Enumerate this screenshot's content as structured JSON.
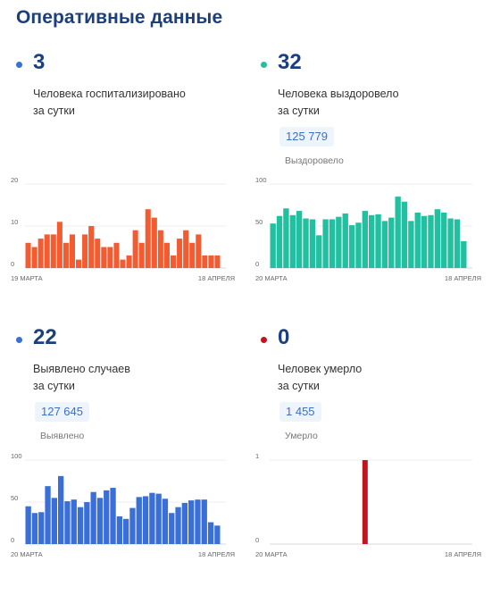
{
  "page_title": "Оперативные данные",
  "panels": [
    {
      "id": "hospitalized",
      "value": "3",
      "description": "Человека госпитализировано\nза сутки",
      "dot_color": "#3a6fd8",
      "total": null,
      "total_label": null
    },
    {
      "id": "recovered",
      "value": "32",
      "description": "Человека выздоровело\nза сутки",
      "dot_color": "#22c0a0",
      "total": "125 779",
      "total_label": "Выздоровело"
    },
    {
      "id": "detected",
      "value": "22",
      "description": "Выявлено случаев\nза сутки",
      "dot_color": "#3a6fd8",
      "total": "127 645",
      "total_label": "Выявлено"
    },
    {
      "id": "died",
      "value": "0",
      "description": "Человек умерло\nза сутки",
      "dot_color": "#c0151f",
      "total": "1 455",
      "total_label": "Умерло"
    }
  ],
  "chart_data": [
    {
      "type": "bar",
      "color": "#f25c30",
      "x_start_label": "19 МАРТА",
      "x_end_label": "18 АПРЕЛЯ",
      "yticks": [
        0,
        10,
        20
      ],
      "ylim": [
        0,
        20
      ],
      "values": [
        6,
        5,
        7,
        8,
        8,
        11,
        6,
        8,
        2,
        8,
        10,
        7,
        5,
        5,
        6,
        2,
        3,
        9,
        6,
        14,
        12,
        9,
        6,
        3,
        7,
        9,
        6,
        8,
        3,
        3,
        3
      ]
    },
    {
      "type": "bar",
      "color": "#22c0a0",
      "x_start_label": "20 МАРТА",
      "x_end_label": "18 АПРЕЛЯ",
      "yticks": [
        0,
        50,
        100
      ],
      "ylim": [
        0,
        100
      ],
      "values": [
        53,
        62,
        71,
        63,
        68,
        59,
        58,
        39,
        58,
        58,
        61,
        65,
        51,
        54,
        68,
        63,
        64,
        56,
        60,
        85,
        79,
        56,
        66,
        62,
        63,
        70,
        66,
        59,
        58,
        32
      ]
    },
    {
      "type": "bar",
      "color": "#3a6fd8",
      "x_start_label": "20 МАРТА",
      "x_end_label": "18 АПРЕЛЯ",
      "yticks": [
        0,
        50,
        100
      ],
      "ylim": [
        0,
        100
      ],
      "values": [
        45,
        37,
        38,
        69,
        55,
        81,
        51,
        53,
        44,
        50,
        62,
        55,
        64,
        67,
        33,
        30,
        43,
        56,
        57,
        61,
        60,
        54,
        37,
        44,
        49,
        52,
        53,
        53,
        26,
        22
      ]
    },
    {
      "type": "bar",
      "color": "#c0151f",
      "x_start_label": "20 МАРТА",
      "x_end_label": "18 АПРЕЛЯ",
      "yticks": [
        0,
        1
      ],
      "ylim": [
        0,
        1
      ],
      "values": [
        0,
        0,
        0,
        0,
        0,
        0,
        0,
        0,
        0,
        0,
        0,
        0,
        0,
        0,
        1,
        0,
        0,
        0,
        0,
        0,
        0,
        0,
        0,
        0,
        0,
        0,
        0,
        0,
        0,
        0
      ]
    }
  ]
}
